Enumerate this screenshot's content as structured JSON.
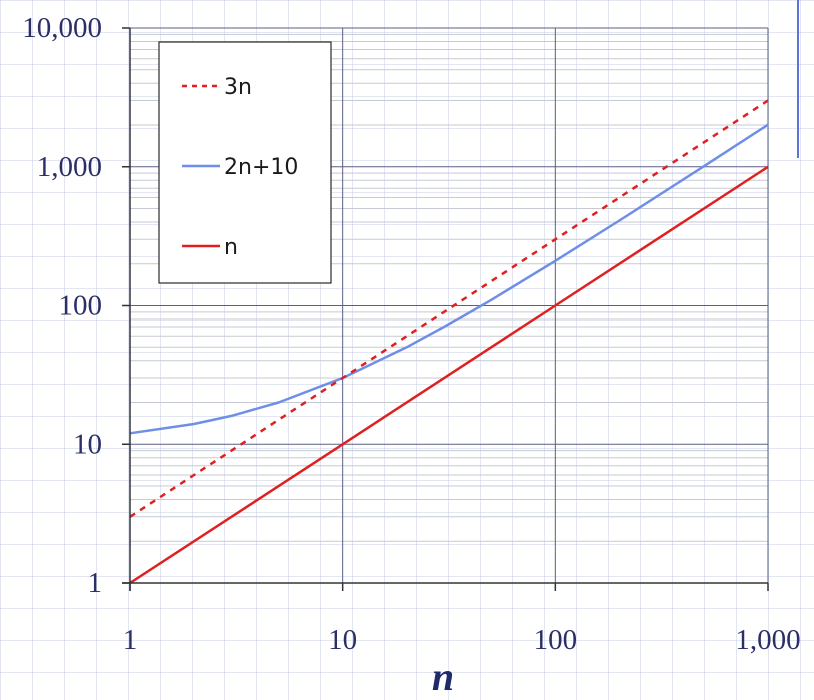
{
  "chart_data": {
    "type": "line",
    "x_scale": "log",
    "y_scale": "log",
    "xlim": [
      1,
      1000
    ],
    "ylim": [
      1,
      10000
    ],
    "xlabel": "n",
    "ylabel": "",
    "title": "",
    "x_ticks": [
      1,
      10,
      100,
      1000
    ],
    "x_tick_labels": [
      "1",
      "10",
      "100",
      "1,000"
    ],
    "y_ticks": [
      1,
      10,
      100,
      1000,
      10000
    ],
    "y_tick_labels": [
      "1",
      "10",
      "100",
      "1,000",
      "10,000"
    ],
    "grid": true,
    "legend_position": "top-left",
    "series": [
      {
        "name": "3n",
        "color": "#e02020",
        "dash": "dotted",
        "x": [
          1,
          2,
          3,
          5,
          10,
          20,
          30,
          50,
          100,
          200,
          300,
          500,
          1000
        ],
        "y": [
          3,
          6,
          9,
          15,
          30,
          60,
          90,
          150,
          300,
          600,
          900,
          1500,
          3000
        ]
      },
      {
        "name": "2n+10",
        "color": "#6f8ee8",
        "dash": "solid",
        "x": [
          1,
          2,
          3,
          5,
          10,
          20,
          30,
          50,
          100,
          200,
          300,
          500,
          1000
        ],
        "y": [
          12,
          14,
          16,
          20,
          30,
          50,
          70,
          110,
          210,
          410,
          610,
          1010,
          2010
        ]
      },
      {
        "name": "n",
        "color": "#e02020",
        "dash": "solid",
        "x": [
          1,
          10,
          100,
          1000
        ],
        "y": [
          1,
          10,
          100,
          1000
        ]
      }
    ]
  }
}
